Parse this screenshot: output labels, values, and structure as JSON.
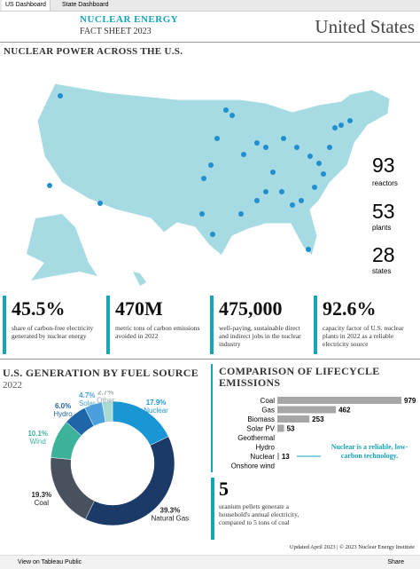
{
  "tabs": [
    "US Dashboard",
    "State Dashboard"
  ],
  "header": {
    "title": "NUCLEAR ENERGY",
    "subtitle": "FACT SHEET 2023",
    "region": "United States"
  },
  "map": {
    "title": "NUCLEAR POWER ACROSS THE U.S.",
    "stats": [
      {
        "value": "93",
        "label": "reactors"
      },
      {
        "value": "53",
        "label": "plants"
      },
      {
        "value": "28",
        "label": "states"
      }
    ]
  },
  "kpis": [
    {
      "value": "45.5%",
      "label": "share of carbon-free electricity generated by nuclear energy"
    },
    {
      "value": "470M",
      "label": "metric tons of carbon emissions avoided in 2022"
    },
    {
      "value": "475,000",
      "label": "well-paying, sustainable direct and indirect jobs in the nuclear industry"
    },
    {
      "value": "92.6%",
      "label": "capacity factor of U.S. nuclear plants in 2022 as a reliable electricity source"
    }
  ],
  "generation": {
    "type": "pie",
    "title": "U.S. GENERATION BY FUEL SOURCE",
    "subtitle": "2022",
    "categories": [
      "Nuclear",
      "Natural Gas",
      "Coal",
      "Wind",
      "Hydro",
      "Solar",
      "Other"
    ],
    "values": [
      17.9,
      39.3,
      19.3,
      10.1,
      6.0,
      4.7,
      2.7
    ],
    "value_labels": [
      "17.9%",
      "39.3%",
      "19.3%",
      "10.1%",
      "6.0%",
      "4.7%",
      "2.7%"
    ],
    "colors": [
      "#1b96d4",
      "#1c3a68",
      "#47525e",
      "#3db39b",
      "#1f66a8",
      "#4a9fdc",
      "#a9dbd3"
    ]
  },
  "emissions": {
    "type": "bar",
    "title": "COMPARISON OF LIFECYCLE EMISSIONS",
    "categories": [
      "Coal",
      "Gas",
      "Biomass",
      "Solar PV",
      "Geothermal",
      "Hydro",
      "Nuclear",
      "Onshore wind"
    ],
    "values": [
      979,
      462,
      253,
      53,
      0,
      0,
      13,
      0
    ],
    "value_labels": [
      "979",
      "462",
      "253",
      "53",
      null,
      null,
      "13",
      null
    ],
    "color": "#a6a6a6",
    "annotation": "Nuclear is a reliable, low-carbon technology."
  },
  "uranium": {
    "value": "5",
    "label": "uranium pellets generate a household's annual electricity, compared to 5 tons of coal"
  },
  "footer": "Updated April 2023 | © 2023 Nuclear Energy Institute",
  "toolbar": {
    "link": "View on Tableau Public",
    "share": "Share"
  }
}
